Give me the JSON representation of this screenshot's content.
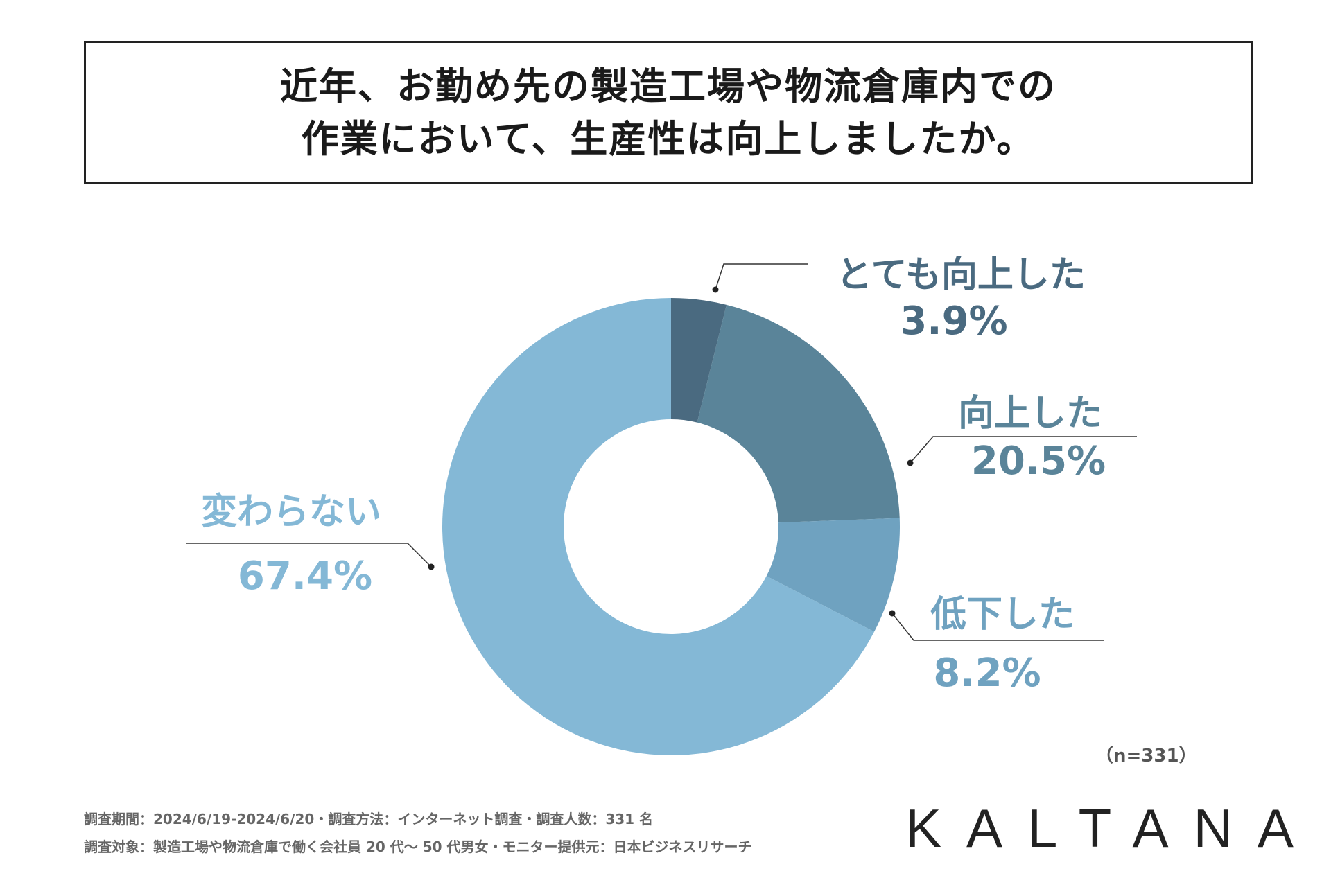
{
  "title": {
    "line1": "近年、お勤め先の製造工場や物流倉庫内での",
    "line2": "作業において、生産性は向上しましたか。"
  },
  "chart_data": {
    "type": "pie",
    "variant": "donut",
    "categories": [
      "とても向上した",
      "向上した",
      "低下した",
      "変わらない"
    ],
    "values": [
      3.9,
      20.5,
      8.2,
      67.4
    ],
    "value_labels": [
      "3.9%",
      "20.5%",
      "8.2%",
      "67.4%"
    ],
    "colors": [
      "#4a6a80",
      "#5a8499",
      "#6fa2c0",
      "#84b8d6"
    ],
    "label_colors": [
      "#4a6a80",
      "#5a8499",
      "#6fa2c0",
      "#84b8d6"
    ],
    "legend": "none",
    "sample_size": "（n=331）"
  },
  "footer": {
    "line1": "調査期間：2024/6/19-2024/6/20・調査方法：インターネット調査・調査人数：331 名",
    "line2": "調査対象：製造工場や物流倉庫で働く会社員 20 代～ 50 代男女・モニター提供元：日本ビジネスリサーチ"
  },
  "logo": "KALTANA"
}
